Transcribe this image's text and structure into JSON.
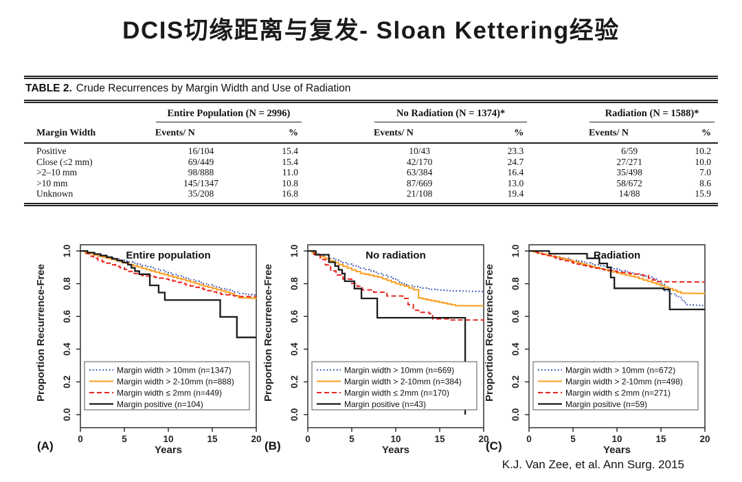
{
  "slide": {
    "title": "DCIS切缘距离与复发- Sloan Kettering经验",
    "citation": "K.J. Van Zee, et al. Ann Surg. 2015"
  },
  "table": {
    "caption_label": "TABLE 2.",
    "caption_text": "Crude Recurrences by Margin Width and Use of Radiation",
    "row_header": "Margin Width",
    "groups": [
      {
        "label": "Entire Population (N = 2996)",
        "events_header": "Events/ N",
        "pct_header": "%"
      },
      {
        "label": "No Radiation (N = 1374)*",
        "events_header": "Events/ N",
        "pct_header": "%"
      },
      {
        "label": "Radiation (N = 1588)*",
        "events_header": "Events/ N",
        "pct_header": "%"
      }
    ],
    "rows": [
      {
        "margin": "Positive",
        "cells": [
          [
            "16/104",
            "15.4"
          ],
          [
            "10/43",
            "23.3"
          ],
          [
            "6/59",
            "10.2"
          ]
        ]
      },
      {
        "margin": "Close (≤2 mm)",
        "cells": [
          [
            "69/449",
            "15.4"
          ],
          [
            "42/170",
            "24.7"
          ],
          [
            "27/271",
            "10.0"
          ]
        ]
      },
      {
        "margin": ">2–10 mm",
        "cells": [
          [
            "98/888",
            "11.0"
          ],
          [
            "63/384",
            "16.4"
          ],
          [
            "35/498",
            "7.0"
          ]
        ]
      },
      {
        "margin": ">10 mm",
        "cells": [
          [
            "145/1347",
            "10.8"
          ],
          [
            "87/669",
            "13.0"
          ],
          [
            "58/672",
            "8.6"
          ]
        ]
      },
      {
        "margin": "Unknown",
        "cells": [
          [
            "35/208",
            "16.8"
          ],
          [
            "21/108",
            "19.4"
          ],
          [
            "14/88",
            "15.9"
          ]
        ]
      }
    ]
  },
  "colors": {
    "blue": "#3a55b4",
    "orange": "#f99d1c",
    "red": "#e8251f",
    "black": "#1a1a1a"
  },
  "chart_data": [
    {
      "type": "line",
      "panel_letter": "A",
      "title": "Entire population",
      "xlabel": "Years",
      "ylabel": "Proportion Recurrence-Free",
      "xticks": [
        0,
        5,
        10,
        15,
        20
      ],
      "yticks": [
        0.0,
        0.2,
        0.4,
        0.6,
        0.8,
        1.0
      ],
      "xlim": [
        0,
        20
      ],
      "ylim": [
        0.0,
        1.0
      ],
      "legend_position": "lower-left",
      "series": [
        {
          "name": "Margin width > 10mm (n=1347)",
          "color": "#3a55b4",
          "dash": "dotted",
          "width": 2,
          "render": "fine",
          "points": [
            [
              0,
              1
            ],
            [
              2,
              0.974
            ],
            [
              4,
              0.951
            ],
            [
              6,
              0.926
            ],
            [
              8,
              0.897
            ],
            [
              10,
              0.865
            ],
            [
              12,
              0.831
            ],
            [
              14,
              0.8
            ],
            [
              16,
              0.77
            ],
            [
              17.5,
              0.75
            ],
            [
              18,
              0.74
            ],
            [
              20,
              0.728
            ]
          ]
        },
        {
          "name": "Margin width > 2-10mm (n=888)",
          "color": "#f99d1c",
          "dash": "solid",
          "width": 2,
          "render": "fine",
          "points": [
            [
              0,
              1
            ],
            [
              2,
              0.968
            ],
            [
              4,
              0.942
            ],
            [
              6,
              0.91
            ],
            [
              8,
              0.878
            ],
            [
              10,
              0.848
            ],
            [
              12,
              0.818
            ],
            [
              14,
              0.785
            ],
            [
              16,
              0.757
            ],
            [
              17,
              0.74
            ],
            [
              18,
              0.714
            ],
            [
              20,
              0.71
            ]
          ]
        },
        {
          "name": "Margin width ≤ 2mm (n=449)",
          "color": "#e8251f",
          "dash": "dashed",
          "width": 2,
          "render": "fine",
          "points": [
            [
              0,
              1
            ],
            [
              1,
              0.968
            ],
            [
              2,
              0.943
            ],
            [
              3,
              0.925
            ],
            [
              4,
              0.906
            ],
            [
              5,
              0.888
            ],
            [
              6,
              0.862
            ],
            [
              7,
              0.85
            ],
            [
              8,
              0.843
            ],
            [
              10,
              0.825
            ],
            [
              12,
              0.792
            ],
            [
              14,
              0.765
            ],
            [
              16,
              0.735
            ],
            [
              18,
              0.722
            ],
            [
              20,
              0.72
            ]
          ]
        },
        {
          "name": "Margin positive (n=104)",
          "color": "#1a1a1a",
          "dash": "solid",
          "width": 2.3,
          "render": "exact",
          "points": [
            [
              0,
              1
            ],
            [
              0.8,
              0.99
            ],
            [
              1.6,
              0.981
            ],
            [
              2.3,
              0.972
            ],
            [
              3,
              0.962
            ],
            [
              3.6,
              0.952
            ],
            [
              4.2,
              0.941
            ],
            [
              4.8,
              0.93
            ],
            [
              5.4,
              0.916
            ],
            [
              5.8,
              0.897
            ],
            [
              6.2,
              0.877
            ],
            [
              6.7,
              0.858
            ],
            [
              7.9,
              0.79
            ],
            [
              8.9,
              0.746
            ],
            [
              9.6,
              0.7
            ],
            [
              15.9,
              0.597
            ],
            [
              17.8,
              0.472
            ],
            [
              20,
              0.472
            ]
          ]
        }
      ]
    },
    {
      "type": "line",
      "panel_letter": "B",
      "title": "No radiation",
      "xlabel": "Years",
      "ylabel": "Proportion Recurrence-Free",
      "xticks": [
        0,
        5,
        10,
        15,
        20
      ],
      "yticks": [
        0.0,
        0.2,
        0.4,
        0.6,
        0.8,
        1.0
      ],
      "xlim": [
        0,
        20
      ],
      "ylim": [
        0.0,
        1.0
      ],
      "legend_position": "lower-left",
      "series": [
        {
          "name": "Margin width > 10mm (n=669)",
          "color": "#3a55b4",
          "dash": "dotted",
          "width": 2,
          "render": "fine",
          "points": [
            [
              0,
              1
            ],
            [
              2,
              0.963
            ],
            [
              4,
              0.928
            ],
            [
              6,
              0.895
            ],
            [
              8,
              0.862
            ],
            [
              10,
              0.822
            ],
            [
              10.7,
              0.8
            ],
            [
              11.5,
              0.788
            ],
            [
              12.5,
              0.777
            ],
            [
              14,
              0.765
            ],
            [
              16,
              0.757
            ],
            [
              20,
              0.752
            ]
          ]
        },
        {
          "name": "Margin width > 2-10mm (n=384)",
          "color": "#f99d1c",
          "dash": "solid",
          "width": 2,
          "render": "fine",
          "points": [
            [
              0,
              1
            ],
            [
              2,
              0.952
            ],
            [
              4,
              0.906
            ],
            [
              6,
              0.863
            ],
            [
              8,
              0.84
            ],
            [
              10,
              0.8
            ],
            [
              11,
              0.785
            ],
            [
              12,
              0.763
            ],
            [
              12.6,
              0.712
            ],
            [
              16.8,
              0.666
            ],
            [
              20,
              0.665
            ]
          ]
        },
        {
          "name": "Margin width ≤ 2mm (n=170)",
          "color": "#e8251f",
          "dash": "dashed",
          "width": 2,
          "render": "exact",
          "points": [
            [
              0,
              1
            ],
            [
              0.7,
              0.978
            ],
            [
              1.4,
              0.948
            ],
            [
              2,
              0.915
            ],
            [
              2.6,
              0.878
            ],
            [
              3.2,
              0.853
            ],
            [
              4,
              0.828
            ],
            [
              5,
              0.802
            ],
            [
              5.6,
              0.785
            ],
            [
              6.2,
              0.762
            ],
            [
              7.5,
              0.748
            ],
            [
              9,
              0.725
            ],
            [
              10.8,
              0.71
            ],
            [
              11.4,
              0.672
            ],
            [
              12,
              0.638
            ],
            [
              12.6,
              0.625
            ],
            [
              13.8,
              0.617
            ],
            [
              14.2,
              0.585
            ],
            [
              16,
              0.578
            ],
            [
              20,
              0.572
            ]
          ]
        },
        {
          "name": "Margin positive (n=43)",
          "color": "#1a1a1a",
          "dash": "solid",
          "width": 2.3,
          "render": "exact",
          "points": [
            [
              0,
              1
            ],
            [
              0.9,
              0.977
            ],
            [
              2.4,
              0.931
            ],
            [
              3.1,
              0.908
            ],
            [
              3.5,
              0.885
            ],
            [
              3.9,
              0.862
            ],
            [
              4.2,
              0.815
            ],
            [
              5.3,
              0.77
            ],
            [
              6.1,
              0.71
            ],
            [
              7.9,
              0.592
            ],
            [
              17.9,
              0.0
            ]
          ]
        }
      ]
    },
    {
      "type": "line",
      "panel_letter": "C",
      "title": "Radiation",
      "xlabel": "Years",
      "ylabel": "Proportion Recurrence-Free",
      "xticks": [
        0,
        5,
        10,
        15,
        20
      ],
      "yticks": [
        0.0,
        0.2,
        0.4,
        0.6,
        0.8,
        1.0
      ],
      "xlim": [
        0,
        20
      ],
      "ylim": [
        0.0,
        1.0
      ],
      "legend_position": "lower-left",
      "series": [
        {
          "name": "Margin width > 10mm (n=672)",
          "color": "#3a55b4",
          "dash": "dotted",
          "width": 2,
          "render": "fine",
          "points": [
            [
              0,
              1
            ],
            [
              2,
              0.975
            ],
            [
              4,
              0.954
            ],
            [
              6,
              0.932
            ],
            [
              8,
              0.91
            ],
            [
              10,
              0.885
            ],
            [
              12,
              0.86
            ],
            [
              14,
              0.832
            ],
            [
              15,
              0.8
            ],
            [
              15.4,
              0.758
            ],
            [
              17,
              0.716
            ],
            [
              17.8,
              0.672
            ],
            [
              20,
              0.665
            ]
          ]
        },
        {
          "name": "Margin width > 2-10mm (n=498)",
          "color": "#f99d1c",
          "dash": "solid",
          "width": 2,
          "render": "fine",
          "points": [
            [
              0,
              1
            ],
            [
              2,
              0.974
            ],
            [
              4,
              0.95
            ],
            [
              6,
              0.92
            ],
            [
              8,
              0.892
            ],
            [
              10,
              0.865
            ],
            [
              12,
              0.84
            ],
            [
              13,
              0.822
            ],
            [
              14,
              0.806
            ],
            [
              17.3,
              0.742
            ],
            [
              20,
              0.74
            ]
          ]
        },
        {
          "name": "Margin width ≤ 2mm (n=271)",
          "color": "#e8251f",
          "dash": "dashed",
          "width": 2,
          "render": "fine",
          "points": [
            [
              0,
              1
            ],
            [
              2,
              0.972
            ],
            [
              4,
              0.94
            ],
            [
              6,
              0.912
            ],
            [
              8,
              0.89
            ],
            [
              10,
              0.872
            ],
            [
              12,
              0.858
            ],
            [
              13,
              0.85
            ],
            [
              13.6,
              0.833
            ],
            [
              14.5,
              0.812
            ],
            [
              20,
              0.81
            ]
          ]
        },
        {
          "name": "Margin positive (n=59)",
          "color": "#1a1a1a",
          "dash": "solid",
          "width": 2.3,
          "render": "exact",
          "points": [
            [
              0,
              1
            ],
            [
              2.3,
              0.983
            ],
            [
              6.6,
              0.955
            ],
            [
              8,
              0.924
            ],
            [
              8.9,
              0.9
            ],
            [
              9.3,
              0.838
            ],
            [
              9.7,
              0.772
            ],
            [
              15.3,
              0.765
            ],
            [
              16,
              0.643
            ],
            [
              20,
              0.643
            ]
          ]
        }
      ]
    }
  ]
}
